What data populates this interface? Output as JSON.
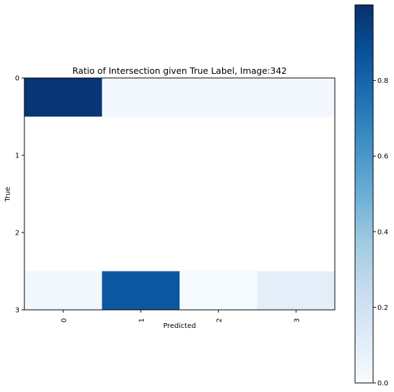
{
  "chart_data": {
    "type": "heatmap",
    "title": "Ratio of Intersection given True Label, Image:342",
    "xlabel": "Predicted",
    "ylabel": "True",
    "x_categories": [
      "0",
      "1",
      "2",
      "3"
    ],
    "y_categories": [
      "0",
      "1",
      "2",
      "3"
    ],
    "x_tick_rotation": 90,
    "colormap": "Blues",
    "color_low": "#f7fbff",
    "color_high": "#08306b",
    "colorbar": {
      "range": [
        0.0,
        1.0
      ],
      "ticks": [
        "0.0",
        "0.2",
        "0.4",
        "0.6",
        "0.8"
      ],
      "tick_values": [
        0.0,
        0.2,
        0.4,
        0.6,
        0.8
      ]
    },
    "cells": [
      {
        "row": 0,
        "col": 0,
        "value": 0.98
      },
      {
        "row": 0,
        "col": 1,
        "value": 0.02
      },
      {
        "row": 0,
        "col": 2,
        "value": 0.02
      },
      {
        "row": 0,
        "col": 3,
        "value": 0.02
      },
      {
        "row": 3,
        "col": 0,
        "value": 0.03
      },
      {
        "row": 3,
        "col": 1,
        "value": 0.85
      },
      {
        "row": 3,
        "col": 2,
        "value": 0.01
      },
      {
        "row": 3,
        "col": 3,
        "value": 0.1
      }
    ],
    "y_axis_visible_range": [
      0,
      3
    ],
    "grid": false
  }
}
